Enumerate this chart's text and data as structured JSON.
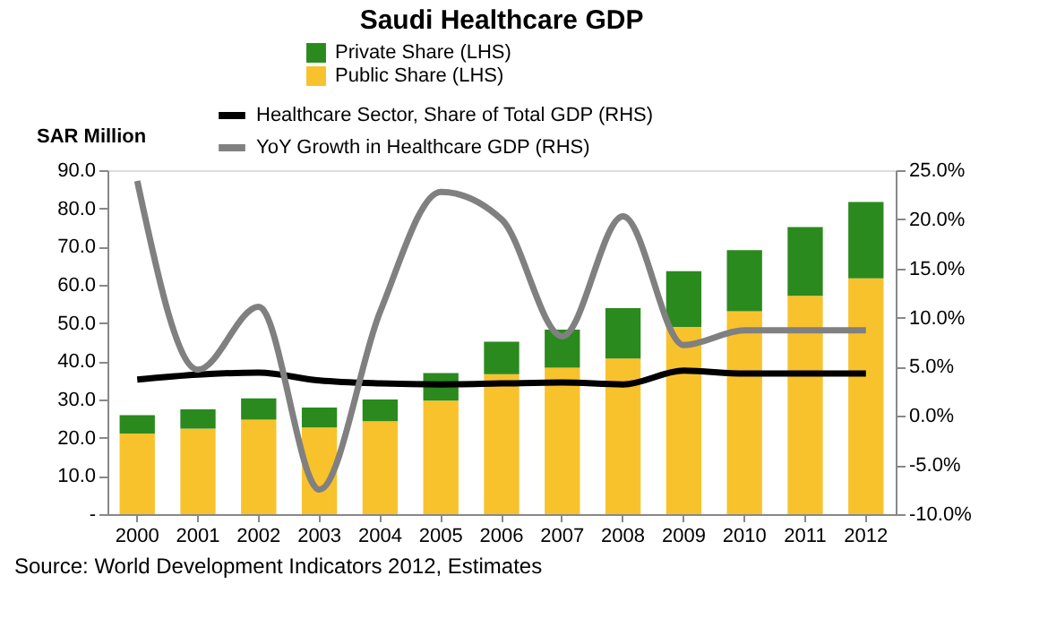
{
  "chart_data": {
    "type": "bar",
    "title": "Saudi Healthcare GDP",
    "ylabel": "SAR Million",
    "stacked": true,
    "legend": "top",
    "grid": false,
    "categories": [
      "2000",
      "2001",
      "2002",
      "2003",
      "2004",
      "2005",
      "2006",
      "2007",
      "2008",
      "2009",
      "2010",
      "2011",
      "2012"
    ],
    "ylim": [
      0,
      90
    ],
    "yticks": [
      {
        "value": 0,
        "label": "-"
      },
      {
        "value": 10,
        "label": "10.0"
      },
      {
        "value": 20,
        "label": "20.0"
      },
      {
        "value": 30,
        "label": "30.0"
      },
      {
        "value": 40,
        "label": "40.0"
      },
      {
        "value": 50,
        "label": "50.0"
      },
      {
        "value": 60,
        "label": "60.0"
      },
      {
        "value": 70,
        "label": "70.0"
      },
      {
        "value": 80,
        "label": "80.0"
      },
      {
        "value": 90,
        "label": "90.0"
      }
    ],
    "y2lim": [
      -10,
      25
    ],
    "y2ticks": [
      {
        "value": -10,
        "label": "-10.0%"
      },
      {
        "value": -5,
        "label": "-5.0%"
      },
      {
        "value": 0,
        "label": "0.0%"
      },
      {
        "value": 5,
        "label": "5.0%"
      },
      {
        "value": 10,
        "label": "10.0%"
      },
      {
        "value": 15,
        "label": "15.0%"
      },
      {
        "value": 20,
        "label": "20.0%"
      },
      {
        "value": 25,
        "label": "25.0%"
      }
    ],
    "series": [
      {
        "name": "Public Share (LHS)",
        "color": "#f8c22c",
        "values": [
          21.1,
          22.4,
          24.7,
          22.7,
          24.3,
          29.7,
          36.6,
          38.3,
          40.7,
          49.0,
          53.1,
          57.1,
          61.7
        ]
      },
      {
        "name": "Private Share (LHS)",
        "color": "#2a8a1e",
        "values": [
          4.8,
          5.0,
          5.6,
          5.2,
          5.7,
          7.2,
          8.5,
          10.0,
          13.2,
          14.6,
          16.0,
          18.0,
          20.0
        ]
      },
      {
        "name": "Healthcare Sector, Share of Total GDP (RHS)",
        "type": "line",
        "axis": "y2",
        "color": "#000000",
        "values": [
          3.7,
          4.2,
          4.4,
          3.6,
          3.3,
          3.2,
          3.3,
          3.4,
          3.2,
          4.6,
          4.3,
          4.3,
          4.3
        ]
      },
      {
        "name": "YoY Growth in Healthcare GDP (RHS)",
        "type": "line",
        "axis": "y2",
        "color": "#808080",
        "values": [
          23.9,
          4.7,
          11.1,
          -7.5,
          10.6,
          22.8,
          20.0,
          8.1,
          20.3,
          7.2,
          8.7,
          8.7,
          8.7
        ]
      }
    ],
    "annotations": [
      "Source: World Development Indicators 2012, Estimates"
    ]
  }
}
